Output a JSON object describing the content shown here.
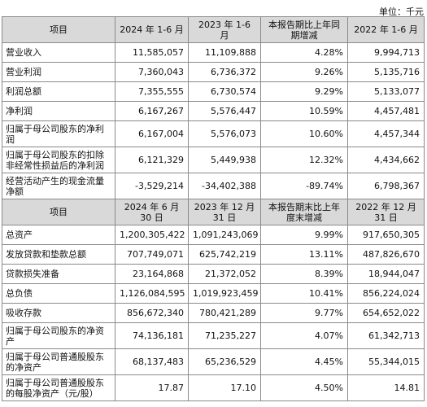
{
  "unit_note": "单位：千元",
  "section1": {
    "header": [
      "项目",
      "2024 年 1-6 月",
      "2023 年 1-6 月",
      "本报告期比上年同期增减",
      "2022 年 1-6 月"
    ],
    "rows": [
      {
        "item": "营业收入",
        "v2024": "11,585,057",
        "v2023": "11,109,888",
        "change": "4.28%",
        "v2022": "9,994,713"
      },
      {
        "item": "营业利润",
        "v2024": "7,360,043",
        "v2023": "6,736,372",
        "change": "9.26%",
        "v2022": "5,135,716"
      },
      {
        "item": "利润总额",
        "v2024": "7,355,555",
        "v2023": "6,730,574",
        "change": "9.29%",
        "v2022": "5,133,077"
      },
      {
        "item": "净利润",
        "v2024": "6,167,267",
        "v2023": "5,576,447",
        "change": "10.59%",
        "v2022": "4,457,481"
      },
      {
        "item": "归属于母公司股东的净利润",
        "v2024": "6,167,004",
        "v2023": "5,576,073",
        "change": "10.60%",
        "v2022": "4,457,344"
      },
      {
        "item": "归属于母公司股东的扣除非经常性损益后的净利润",
        "v2024": "6,121,329",
        "v2023": "5,449,938",
        "change": "12.32%",
        "v2022": "4,434,662"
      },
      {
        "item": "经营活动产生的现金流量净额",
        "v2024": "-3,529,214",
        "v2023": "-34,402,388",
        "change": "-89.74%",
        "v2022": "6,798,367"
      }
    ]
  },
  "section2": {
    "header": [
      "项目",
      "2024 年 6 月 30 日",
      "2023 年 12 月 31 日",
      "本报告期末比上年度末增减",
      "2022 年 12 月 31 日"
    ],
    "rows": [
      {
        "item": "总资产",
        "v2024": "1,200,305,422",
        "v2023": "1,091,243,069",
        "change": "9.99%",
        "v2022": "917,650,305"
      },
      {
        "item": "发放贷款和垫款总额",
        "v2024": "707,749,071",
        "v2023": "625,742,219",
        "change": "13.11%",
        "v2022": "487,826,670"
      },
      {
        "item": "贷款损失准备",
        "v2024": "23,164,868",
        "v2023": "21,372,052",
        "change": "8.39%",
        "v2022": "18,944,047"
      },
      {
        "item": "总负债",
        "v2024": "1,126,084,595",
        "v2023": "1,019,923,459",
        "change": "10.41%",
        "v2022": "856,224,024"
      },
      {
        "item": "吸收存款",
        "v2024": "856,672,340",
        "v2023": "780,421,289",
        "change": "9.77%",
        "v2022": "654,652,022"
      },
      {
        "item": "归属于母公司股东的净资产",
        "v2024": "74,136,181",
        "v2023": "71,235,227",
        "change": "4.07%",
        "v2022": "61,342,713"
      },
      {
        "item": "归属于母公司普通股股东的净资产",
        "v2024": "68,137,483",
        "v2023": "65,236,529",
        "change": "4.45%",
        "v2022": "55,344,015"
      },
      {
        "item": "归属于母公司普通股股东的每股净资产（元/股）",
        "v2024": "17.87",
        "v2023": "17.10",
        "change": "4.50%",
        "v2022": "14.81"
      }
    ]
  }
}
